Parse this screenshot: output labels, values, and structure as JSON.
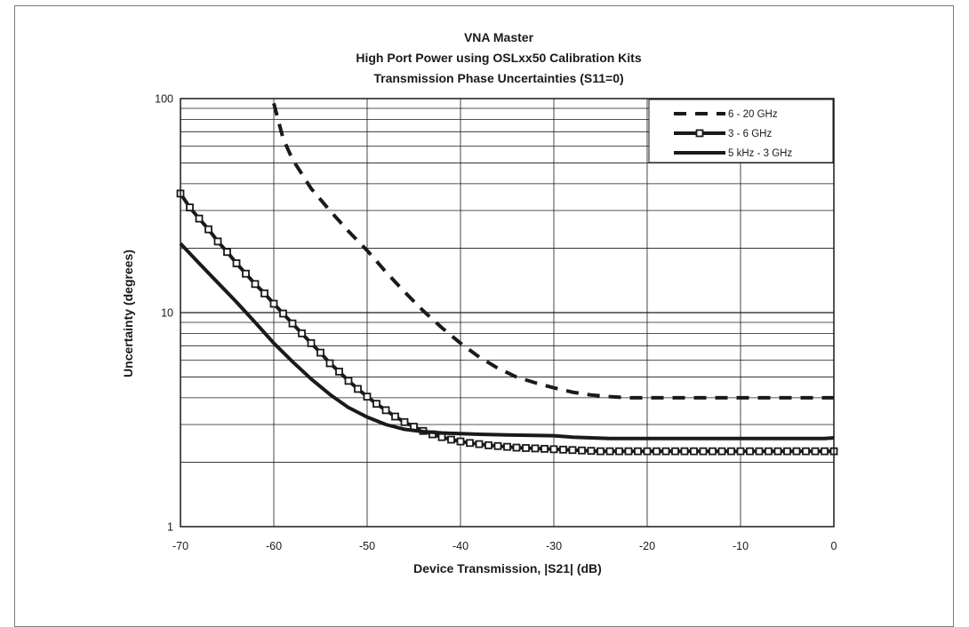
{
  "chart_data": {
    "type": "line",
    "title_lines": [
      "VNA Master",
      "High Port Power using OSLxx50 Calibration Kits",
      "Transmission Phase Uncertainties (S11=0)"
    ],
    "xlabel": "Device Transmission, |S21| (dB)",
    "ylabel": "Uncertainty (degrees)",
    "xlim": [
      -70,
      0
    ],
    "ylim": [
      1,
      100
    ],
    "yscale": "log",
    "grid": true,
    "legend_position": "top-right",
    "x_ticks": [
      "-70",
      "-60",
      "-50",
      "-40",
      "-30",
      "-20",
      "-10",
      "0"
    ],
    "y_ticks": [
      "1",
      "10",
      "100"
    ],
    "series": [
      {
        "name": "6 - 20 GHz",
        "style": "dashed",
        "x": [
          -60,
          -59,
          -58,
          -56,
          -54,
          -52,
          -50,
          -48,
          -46,
          -44,
          -42,
          -40,
          -38,
          -36,
          -34,
          -32,
          -30,
          -28,
          -26,
          -24,
          -22,
          -20,
          -15,
          -10,
          -5,
          0
        ],
        "values": [
          95,
          65,
          52,
          38,
          30,
          24,
          19.5,
          15.5,
          12.5,
          10.2,
          8.5,
          7.2,
          6.2,
          5.5,
          5.0,
          4.7,
          4.45,
          4.25,
          4.12,
          4.05,
          4.0,
          4.0,
          4.0,
          4.0,
          4.0,
          4.0
        ]
      },
      {
        "name": "3 - 6 GHz",
        "style": "solid-square-markers",
        "x": [
          -70,
          -69,
          -68,
          -67,
          -66,
          -65,
          -64,
          -63,
          -62,
          -61,
          -60,
          -59,
          -58,
          -57,
          -56,
          -55,
          -54,
          -53,
          -52,
          -51,
          -50,
          -49,
          -48,
          -47,
          -46,
          -45,
          -44,
          -43,
          -42,
          -41,
          -40,
          -39,
          -38,
          -37,
          -36,
          -35,
          -34,
          -33,
          -32,
          -31,
          -30,
          -29,
          -28,
          -27,
          -26,
          -25,
          -24,
          -23,
          -22,
          -21,
          -20,
          -19,
          -18,
          -17,
          -16,
          -15,
          -14,
          -13,
          -12,
          -11,
          -10,
          -9,
          -8,
          -7,
          -6,
          -5,
          -4,
          -3,
          -2,
          -1,
          0
        ],
        "values": [
          36,
          31,
          27.5,
          24.5,
          21.5,
          19.2,
          17,
          15.2,
          13.6,
          12.3,
          11,
          9.9,
          8.9,
          8.0,
          7.2,
          6.5,
          5.8,
          5.3,
          4.8,
          4.4,
          4.05,
          3.75,
          3.5,
          3.27,
          3.08,
          2.93,
          2.8,
          2.7,
          2.62,
          2.55,
          2.5,
          2.46,
          2.43,
          2.4,
          2.38,
          2.36,
          2.34,
          2.33,
          2.32,
          2.31,
          2.3,
          2.29,
          2.28,
          2.27,
          2.26,
          2.25,
          2.25,
          2.25,
          2.25,
          2.25,
          2.25,
          2.25,
          2.25,
          2.25,
          2.25,
          2.25,
          2.25,
          2.25,
          2.25,
          2.25,
          2.25,
          2.25,
          2.25,
          2.25,
          2.25,
          2.25,
          2.25,
          2.25,
          2.25,
          2.25,
          2.25
        ]
      },
      {
        "name": "5 kHz - 3 GHz",
        "style": "solid",
        "x": [
          -70,
          -68,
          -66,
          -64,
          -62,
          -60,
          -58,
          -56,
          -54,
          -52,
          -50,
          -48,
          -46,
          -44,
          -42,
          -40,
          -38,
          -35,
          -30,
          -28,
          -26,
          -24,
          -22,
          -20,
          -15,
          -10,
          -5,
          -1,
          0
        ],
        "values": [
          21,
          17,
          13.8,
          11.2,
          9.0,
          7.2,
          5.9,
          4.9,
          4.15,
          3.6,
          3.25,
          3.0,
          2.85,
          2.78,
          2.74,
          2.72,
          2.7,
          2.68,
          2.66,
          2.62,
          2.6,
          2.58,
          2.58,
          2.58,
          2.58,
          2.58,
          2.58,
          2.58,
          2.6
        ]
      }
    ]
  }
}
